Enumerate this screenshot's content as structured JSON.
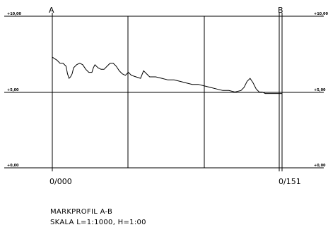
{
  "profile": {
    "title": "MARKPROFIL A-B",
    "scale": "SKALA L=1:1000, H=1:00",
    "start_marker": "A",
    "end_marker": "B",
    "start_station": "0/000",
    "end_station": "0/151",
    "level_labels": [
      "+10,00",
      "+5,00",
      "+0,00"
    ]
  },
  "chart_data": {
    "type": "line",
    "xlabel": "",
    "ylabel": "",
    "xlim": [
      0,
      151
    ],
    "ylim": [
      0,
      10
    ],
    "yticks": [
      0,
      5,
      10
    ],
    "grid": true,
    "series": [
      {
        "x": [
          0,
          3,
          5,
          7,
          9,
          10,
          11,
          12,
          13,
          14,
          16,
          18,
          20,
          22,
          24,
          26,
          27,
          28,
          30,
          32,
          34,
          36,
          38,
          40,
          42,
          44,
          46,
          48,
          50,
          52,
          55,
          58,
          60,
          64,
          68,
          72,
          76,
          80,
          84,
          88,
          92,
          96,
          100,
          104,
          108,
          112,
          116,
          120,
          124,
          126,
          128,
          130,
          132,
          134,
          136,
          138,
          140,
          142,
          144,
          146,
          148,
          151
        ],
        "y": [
          7.3,
          7.1,
          6.9,
          6.9,
          6.7,
          6.2,
          5.9,
          6.0,
          6.2,
          6.6,
          6.8,
          6.9,
          6.8,
          6.5,
          6.3,
          6.3,
          6.6,
          6.8,
          6.6,
          6.5,
          6.5,
          6.7,
          6.9,
          6.9,
          6.7,
          6.4,
          6.2,
          6.1,
          6.3,
          6.1,
          6.0,
          5.9,
          6.4,
          6.0,
          6.0,
          5.9,
          5.8,
          5.8,
          5.7,
          5.6,
          5.5,
          5.5,
          5.4,
          5.3,
          5.2,
          5.1,
          5.1,
          5.0,
          5.1,
          5.3,
          5.7,
          5.9,
          5.6,
          5.2,
          5.0,
          5.0,
          4.9,
          4.9,
          4.9,
          4.9,
          4.9,
          4.9
        ]
      }
    ]
  }
}
